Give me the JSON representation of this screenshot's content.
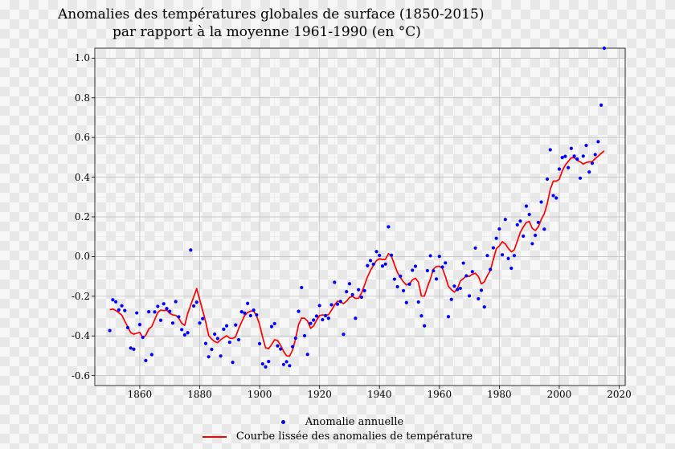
{
  "chart": {
    "type": "scatter+line",
    "title_line1": "Anomalies des températures globales de surface (1850-2015)",
    "title_line2": "par rapport à la moyenne 1961-1990 (en °C)",
    "title_fontsize": 17,
    "title_font": "serif",
    "background": "checkerboard-transparent",
    "xlim": [
      1845,
      2022
    ],
    "ylim": [
      -0.65,
      1.05
    ],
    "xticks": [
      1860,
      1880,
      1900,
      1920,
      1940,
      1960,
      1980,
      2000,
      2020
    ],
    "yticks": [
      -0.6,
      -0.4,
      -0.2,
      0.0,
      0.2,
      0.4,
      0.6,
      0.8,
      1.0
    ],
    "ytick_labels": [
      "-0.6",
      "-0.4",
      "-0.2",
      "0.0",
      "0.2",
      "0.4",
      "0.6",
      "0.8",
      "1.0"
    ],
    "tick_fontsize": 12,
    "grid_major_color": "#bdbdbd",
    "grid_minor_color": "#e2e2e2",
    "grid_major_width": 0.7,
    "grid_minor_width": 0.4,
    "minor_xstep": 5,
    "minor_ystep": 0.1,
    "axis_color": "#000000",
    "axis_width": 0.8,
    "frame": true,
    "scatter": {
      "label": "Anomalie annuelle",
      "marker_color": "#0000ff",
      "marker_size": 4.2,
      "years": [
        1850,
        1851,
        1852,
        1853,
        1854,
        1855,
        1856,
        1857,
        1858,
        1859,
        1860,
        1861,
        1862,
        1863,
        1864,
        1865,
        1866,
        1867,
        1868,
        1869,
        1870,
        1871,
        1872,
        1873,
        1874,
        1875,
        1876,
        1877,
        1878,
        1879,
        1880,
        1881,
        1882,
        1883,
        1884,
        1885,
        1886,
        1887,
        1888,
        1889,
        1890,
        1891,
        1892,
        1893,
        1894,
        1895,
        1896,
        1897,
        1898,
        1899,
        1900,
        1901,
        1902,
        1903,
        1904,
        1905,
        1906,
        1907,
        1908,
        1909,
        1910,
        1911,
        1912,
        1913,
        1914,
        1915,
        1916,
        1917,
        1918,
        1919,
        1920,
        1921,
        1922,
        1923,
        1924,
        1925,
        1926,
        1927,
        1928,
        1929,
        1930,
        1931,
        1932,
        1933,
        1934,
        1935,
        1936,
        1937,
        1938,
        1939,
        1940,
        1941,
        1942,
        1943,
        1944,
        1945,
        1946,
        1947,
        1948,
        1949,
        1950,
        1951,
        1952,
        1953,
        1954,
        1955,
        1956,
        1957,
        1958,
        1959,
        1960,
        1961,
        1962,
        1963,
        1964,
        1965,
        1966,
        1967,
        1968,
        1969,
        1970,
        1971,
        1972,
        1973,
        1974,
        1975,
        1976,
        1977,
        1978,
        1979,
        1980,
        1981,
        1982,
        1983,
        1984,
        1985,
        1986,
        1987,
        1988,
        1989,
        1990,
        1991,
        1992,
        1993,
        1994,
        1995,
        1996,
        1997,
        1998,
        1999,
        2000,
        2001,
        2002,
        2003,
        2004,
        2005,
        2006,
        2007,
        2008,
        2009,
        2010,
        2011,
        2012,
        2013,
        2014,
        2015
      ],
      "values": [
        -0.373,
        -0.218,
        -0.228,
        -0.269,
        -0.248,
        -0.272,
        -0.358,
        -0.461,
        -0.467,
        -0.284,
        -0.343,
        -0.407,
        -0.524,
        -0.278,
        -0.494,
        -0.279,
        -0.251,
        -0.321,
        -0.238,
        -0.262,
        -0.276,
        -0.335,
        -0.227,
        -0.304,
        -0.368,
        -0.395,
        -0.384,
        0.033,
        -0.249,
        -0.23,
        -0.335,
        -0.313,
        -0.438,
        -0.505,
        -0.468,
        -0.391,
        -0.413,
        -0.501,
        -0.366,
        -0.349,
        -0.432,
        -0.533,
        -0.345,
        -0.419,
        -0.278,
        -0.285,
        -0.236,
        -0.298,
        -0.27,
        -0.294,
        -0.439,
        -0.541,
        -0.556,
        -0.529,
        -0.353,
        -0.338,
        -0.45,
        -0.466,
        -0.544,
        -0.53,
        -0.55,
        -0.454,
        -0.411,
        -0.276,
        -0.156,
        -0.399,
        -0.493,
        -0.337,
        -0.32,
        -0.3,
        -0.247,
        -0.318,
        -0.298,
        -0.311,
        -0.243,
        -0.13,
        -0.24,
        -0.226,
        -0.392,
        -0.177,
        -0.137,
        -0.192,
        -0.311,
        -0.167,
        -0.205,
        -0.172,
        -0.046,
        -0.02,
        -0.039,
        0.025,
        0.006,
        -0.048,
        -0.038,
        0.15,
        0.007,
        -0.114,
        -0.152,
        -0.099,
        -0.172,
        -0.232,
        -0.139,
        -0.069,
        -0.049,
        -0.229,
        -0.299,
        -0.349,
        -0.071,
        0.004,
        -0.072,
        -0.113,
        0.001,
        -0.053,
        -0.032,
        -0.303,
        -0.216,
        -0.149,
        -0.166,
        -0.16,
        -0.033,
        -0.097,
        -0.198,
        -0.076,
        0.043,
        -0.213,
        -0.17,
        -0.254,
        0.005,
        -0.065,
        0.044,
        0.092,
        0.139,
        0.009,
        0.187,
        -0.01,
        -0.059,
        0.005,
        0.16,
        0.179,
        0.103,
        0.254,
        0.212,
        0.065,
        0.107,
        0.172,
        0.275,
        0.138,
        0.39,
        0.538,
        0.307,
        0.295,
        0.441,
        0.499,
        0.505,
        0.448,
        0.545,
        0.506,
        0.491,
        0.395,
        0.506,
        0.56,
        0.426,
        0.47,
        0.514,
        0.579,
        0.763
      ]
    },
    "line": {
      "label": "Courbe lissée des anomalies de température",
      "color": "#ff0000",
      "width": 1.7,
      "years": [
        1850,
        1851,
        1852,
        1853,
        1854,
        1855,
        1856,
        1857,
        1858,
        1859,
        1860,
        1861,
        1862,
        1863,
        1864,
        1865,
        1866,
        1867,
        1868,
        1869,
        1870,
        1871,
        1872,
        1873,
        1874,
        1875,
        1876,
        1877,
        1878,
        1879,
        1880,
        1881,
        1882,
        1883,
        1884,
        1885,
        1886,
        1887,
        1888,
        1889,
        1890,
        1891,
        1892,
        1893,
        1894,
        1895,
        1896,
        1897,
        1898,
        1899,
        1900,
        1901,
        1902,
        1903,
        1904,
        1905,
        1906,
        1907,
        1908,
        1909,
        1910,
        1911,
        1912,
        1913,
        1914,
        1915,
        1916,
        1917,
        1918,
        1919,
        1920,
        1921,
        1922,
        1923,
        1924,
        1925,
        1926,
        1927,
        1928,
        1929,
        1930,
        1931,
        1932,
        1933,
        1934,
        1935,
        1936,
        1937,
        1938,
        1939,
        1940,
        1941,
        1942,
        1943,
        1944,
        1945,
        1946,
        1947,
        1948,
        1949,
        1950,
        1951,
        1952,
        1953,
        1954,
        1955,
        1956,
        1957,
        1958,
        1959,
        1960,
        1961,
        1962,
        1963,
        1964,
        1965,
        1966,
        1967,
        1968,
        1969,
        1970,
        1971,
        1972,
        1973,
        1974,
        1975,
        1976,
        1977,
        1978,
        1979,
        1980,
        1981,
        1982,
        1983,
        1984,
        1985,
        1986,
        1987,
        1988,
        1989,
        1990,
        1991,
        1992,
        1993,
        1994,
        1995,
        1996,
        1997,
        1998,
        1999,
        2000,
        2001,
        2002,
        2003,
        2004,
        2005,
        2006,
        2007,
        2008,
        2009,
        2010,
        2011,
        2012,
        2013,
        2014,
        2015
      ],
      "values": [
        -0.268,
        -0.264,
        -0.272,
        -0.283,
        -0.295,
        -0.325,
        -0.354,
        -0.384,
        -0.391,
        -0.386,
        -0.382,
        -0.409,
        -0.397,
        -0.365,
        -0.353,
        -0.317,
        -0.282,
        -0.27,
        -0.272,
        -0.27,
        -0.286,
        -0.294,
        -0.296,
        -0.31,
        -0.336,
        -0.347,
        -0.287,
        -0.245,
        -0.203,
        -0.161,
        -0.217,
        -0.273,
        -0.329,
        -0.398,
        -0.416,
        -0.428,
        -0.434,
        -0.419,
        -0.409,
        -0.399,
        -0.411,
        -0.413,
        -0.404,
        -0.363,
        -0.33,
        -0.297,
        -0.282,
        -0.275,
        -0.274,
        -0.3,
        -0.343,
        -0.406,
        -0.46,
        -0.464,
        -0.444,
        -0.419,
        -0.423,
        -0.447,
        -0.478,
        -0.5,
        -0.502,
        -0.471,
        -0.415,
        -0.343,
        -0.31,
        -0.311,
        -0.325,
        -0.362,
        -0.35,
        -0.321,
        -0.297,
        -0.294,
        -0.295,
        -0.293,
        -0.27,
        -0.244,
        -0.225,
        -0.229,
        -0.237,
        -0.225,
        -0.206,
        -0.201,
        -0.211,
        -0.21,
        -0.184,
        -0.145,
        -0.102,
        -0.07,
        -0.044,
        -0.02,
        -0.011,
        -0.015,
        -0.014,
        0.015,
        0.001,
        -0.04,
        -0.08,
        -0.106,
        -0.128,
        -0.143,
        -0.138,
        -0.117,
        -0.109,
        -0.129,
        -0.199,
        -0.199,
        -0.153,
        -0.113,
        -0.063,
        -0.05,
        -0.049,
        -0.059,
        -0.1,
        -0.15,
        -0.167,
        -0.179,
        -0.163,
        -0.123,
        -0.111,
        -0.097,
        -0.1,
        -0.089,
        -0.084,
        -0.1,
        -0.138,
        -0.127,
        -0.096,
        -0.07,
        -0.015,
        0.04,
        0.054,
        0.075,
        0.064,
        0.041,
        0.024,
        0.034,
        0.077,
        0.122,
        0.149,
        0.172,
        0.177,
        0.142,
        0.131,
        0.149,
        0.187,
        0.216,
        0.267,
        0.339,
        0.38,
        0.38,
        0.389,
        0.432,
        0.46,
        0.48,
        0.497,
        0.499,
        0.485,
        0.477,
        0.466,
        0.474,
        0.477,
        0.478,
        0.494,
        0.506,
        0.52,
        0.533
      ]
    },
    "legend": {
      "position": "bottom-center",
      "fontsize": 13,
      "items": [
        {
          "type": "dot",
          "color": "#0000ff",
          "label": "Anomalie annuelle"
        },
        {
          "type": "line",
          "color": "#ff0000",
          "label": "Courbe lissée des anomalies de température"
        }
      ]
    }
  }
}
